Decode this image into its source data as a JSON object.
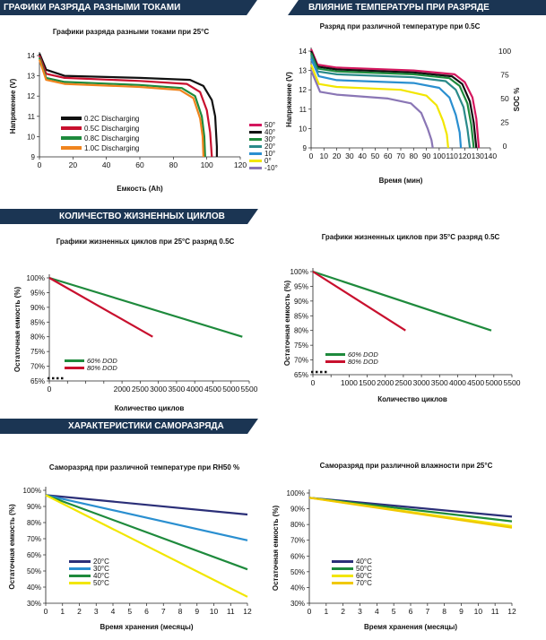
{
  "banners": {
    "discharge": "ГРАФИКИ РАЗРЯДА РАЗНЫМИ ТОКАМИ",
    "temperature": "ВЛИЯНИЕ ТЕМПЕРАТУРЫ ПРИ РАЗРЯДЕ",
    "cycles": "КОЛИЧЕСТВО ЖИЗНЕННЫХ ЦИКЛОВ",
    "selfdischarge": "ХАРАКТЕРИСТИКИ САМОРАЗРЯДА"
  },
  "colors": {
    "banner": "#1b3553",
    "black": "#111111",
    "red": "#c8102e",
    "green": "#1e8a3c",
    "orange": "#f0841e",
    "magenta": "#d4175e",
    "yellow": "#f2e600",
    "navy": "#2b2f78",
    "blue": "#2a8fd0",
    "purple": "#8a76b5",
    "teal": "#2a8a8a"
  },
  "chart_data": [
    {
      "id": "c1",
      "type": "line",
      "title": "Графики разряда разными токами при 25°C",
      "xlabel": "Емкость (Ah)",
      "ylabel": "Напряжение (V)",
      "xlim": [
        0,
        120
      ],
      "ylim": [
        9,
        14
      ],
      "xticks": [
        "0",
        "20",
        "40",
        "60",
        "80",
        "100",
        "120"
      ],
      "yticks": [
        "9",
        "10",
        "11",
        "12",
        "13",
        "14"
      ],
      "series": [
        {
          "name": "0.2C Discharging",
          "color": "#111111",
          "points": [
            [
              0,
              14.1
            ],
            [
              4,
              13.3
            ],
            [
              15,
              13.0
            ],
            [
              60,
              12.9
            ],
            [
              90,
              12.8
            ],
            [
              98,
              12.5
            ],
            [
              103,
              11.8
            ],
            [
              105,
              11
            ],
            [
              106,
              9.5
            ],
            [
              106,
              9
            ]
          ]
        },
        {
          "name": "0.5C Discharging",
          "color": "#c8102e",
          "points": [
            [
              0,
              14.0
            ],
            [
              4,
              13.1
            ],
            [
              15,
              12.9
            ],
            [
              60,
              12.75
            ],
            [
              88,
              12.6
            ],
            [
              96,
              12.2
            ],
            [
              100,
              11.3
            ],
            [
              102,
              10.2
            ],
            [
              103,
              9
            ]
          ]
        },
        {
          "name": "0.8C Discharging",
          "color": "#1e8a3c",
          "points": [
            [
              0,
              13.9
            ],
            [
              4,
              12.9
            ],
            [
              15,
              12.7
            ],
            [
              60,
              12.55
            ],
            [
              85,
              12.4
            ],
            [
              93,
              12.0
            ],
            [
              97,
              11.0
            ],
            [
              98.5,
              10.0
            ],
            [
              99,
              9
            ]
          ]
        },
        {
          "name": "1.0C Discharging",
          "color": "#f0841e",
          "points": [
            [
              0,
              13.8
            ],
            [
              4,
              12.8
            ],
            [
              15,
              12.6
            ],
            [
              60,
              12.45
            ],
            [
              84,
              12.3
            ],
            [
              92,
              11.9
            ],
            [
              96,
              10.9
            ],
            [
              97.5,
              10.0
            ],
            [
              98,
              9
            ]
          ]
        }
      ]
    },
    {
      "id": "c2",
      "type": "line",
      "title": "Разряд при различной температуре при 0.5C",
      "xlabel": "Время (мин)",
      "ylabel": "Напряжение (V)",
      "y2label": "SOC %",
      "xlim": [
        0,
        140
      ],
      "ylim": [
        9,
        14
      ],
      "xticks": [
        "0",
        "10",
        "20",
        "30",
        "40",
        "50",
        "60",
        "70",
        "80",
        "90",
        "100",
        "110",
        "120",
        "130",
        "140"
      ],
      "yticks": [
        "9",
        "10",
        "11",
        "12",
        "13",
        "14"
      ],
      "y2ticks": [
        "0",
        "25",
        "50",
        "75",
        "100"
      ],
      "series": [
        {
          "name": "50°",
          "color": "#d4175e",
          "points": [
            [
              0,
              14.1
            ],
            [
              5,
              13.3
            ],
            [
              20,
              13.15
            ],
            [
              80,
              13.0
            ],
            [
              112,
              12.8
            ],
            [
              120,
              12.4
            ],
            [
              126,
              11.6
            ],
            [
              129,
              10.5
            ],
            [
              131,
              9
            ]
          ]
        },
        {
          "name": "40°",
          "color": "#111111",
          "points": [
            [
              0,
              14.0
            ],
            [
              5,
              13.2
            ],
            [
              20,
              13.05
            ],
            [
              80,
              12.9
            ],
            [
              110,
              12.7
            ],
            [
              118,
              12.3
            ],
            [
              124,
              11.4
            ],
            [
              127,
              10.3
            ],
            [
              129,
              9
            ]
          ]
        },
        {
          "name": "30°",
          "color": "#1e8a3c",
          "points": [
            [
              0,
              13.9
            ],
            [
              5,
              13.1
            ],
            [
              20,
              12.95
            ],
            [
              80,
              12.8
            ],
            [
              108,
              12.6
            ],
            [
              116,
              12.2
            ],
            [
              122,
              11.3
            ],
            [
              125,
              10.2
            ],
            [
              127,
              9
            ]
          ]
        },
        {
          "name": "20°",
          "color": "#2a8a8a",
          "points": [
            [
              0,
              13.8
            ],
            [
              5,
              12.95
            ],
            [
              20,
              12.8
            ],
            [
              80,
              12.65
            ],
            [
              105,
              12.45
            ],
            [
              113,
              12.0
            ],
            [
              119,
              11.1
            ],
            [
              122,
              10.0
            ],
            [
              124,
              9
            ]
          ]
        },
        {
          "name": "10°",
          "color": "#2a8fd0",
          "points": [
            [
              0,
              13.6
            ],
            [
              6,
              12.7
            ],
            [
              20,
              12.5
            ],
            [
              80,
              12.35
            ],
            [
              100,
              12.1
            ],
            [
              108,
              11.6
            ],
            [
              113,
              10.7
            ],
            [
              116,
              9.8
            ],
            [
              117,
              9
            ]
          ]
        },
        {
          "name": "0°",
          "color": "#f2e600",
          "points": [
            [
              0,
              13.3
            ],
            [
              6,
              12.3
            ],
            [
              20,
              12.15
            ],
            [
              70,
              12.0
            ],
            [
              90,
              11.7
            ],
            [
              98,
              11.2
            ],
            [
              103,
              10.4
            ],
            [
              106,
              9.7
            ],
            [
              107,
              9
            ]
          ]
        },
        {
          "name": "-10°",
          "color": "#8a76b5",
          "points": [
            [
              0,
              13.0
            ],
            [
              7,
              11.9
            ],
            [
              20,
              11.75
            ],
            [
              60,
              11.55
            ],
            [
              78,
              11.3
            ],
            [
              86,
              10.8
            ],
            [
              91,
              10.0
            ],
            [
              94,
              9.4
            ],
            [
              95,
              9
            ]
          ]
        }
      ]
    },
    {
      "id": "c3",
      "type": "line",
      "title": "Графики жизненных циклов при 25°C разряд 0.5C",
      "xlabel": "Количество циклов",
      "ylabel": "Остаточная емкость (%)",
      "xlim": [
        0,
        5800
      ],
      "ylim": [
        65,
        100
      ],
      "xticks": [
        "0",
        "500",
        "1000",
        "1500",
        "2000",
        "2500",
        "3000",
        "3500",
        "4000",
        "4500",
        "5000",
        "5500"
      ],
      "xtick_labels_shown": [
        "2000",
        "2500",
        "3000",
        "3500",
        "4000",
        "4500",
        "5000",
        "5500"
      ],
      "yticks": [
        "65%",
        "70%",
        "75%",
        "80%",
        "85%",
        "90%",
        "95%",
        "100%"
      ],
      "series": [
        {
          "name": "60% DOD",
          "color": "#1e8a3c",
          "points": [
            [
              0,
              100
            ],
            [
              5600,
              80
            ]
          ]
        },
        {
          "name": "80%  DOD",
          "color": "#c8102e",
          "points": [
            [
              0,
              100
            ],
            [
              3000,
              80
            ]
          ]
        }
      ]
    },
    {
      "id": "c4",
      "type": "line",
      "title": "Графики жизненных циклов при 35°C разряд 0.5C",
      "xlabel": "Количество циклов",
      "ylabel": "Остаточная емкость (%)",
      "xlim": [
        0,
        5800
      ],
      "ylim": [
        65,
        100
      ],
      "xticks": [
        "0",
        "500",
        "1000",
        "1500",
        "2000",
        "2500",
        "3000",
        "3500",
        "4000",
        "4500",
        "5000",
        "5500"
      ],
      "xtick_labels_shown": [
        "1000",
        "1500",
        "2000",
        "2500",
        "3000",
        "3500",
        "4000",
        "4500",
        "5000",
        "5500"
      ],
      "yticks": [
        "65%",
        "70%",
        "75%",
        "80%",
        "85%",
        "90%",
        "95%",
        "100%"
      ],
      "series": [
        {
          "name": "60% DOD",
          "color": "#1e8a3c",
          "points": [
            [
              0,
              100
            ],
            [
              5200,
              80
            ]
          ]
        },
        {
          "name": "80%  DOD",
          "color": "#c8102e",
          "points": [
            [
              0,
              100
            ],
            [
              2700,
              80
            ]
          ]
        }
      ]
    },
    {
      "id": "c5",
      "type": "line",
      "title": "Саморазряд при различной температуре  при RH50 %",
      "xlabel": "Время хранения (месяцы)",
      "ylabel": "Остаточная емкость  (%)",
      "xlim": [
        0,
        12
      ],
      "ylim": [
        30,
        100
      ],
      "xticks": [
        "0",
        "1",
        "2",
        "3",
        "4",
        "5",
        "6",
        "7",
        "8",
        "9",
        "10",
        "11",
        "12"
      ],
      "yticks": [
        "30%",
        "40%",
        "50%",
        "60%",
        "70%",
        "80%",
        "90%",
        "100%"
      ],
      "series": [
        {
          "name": "20°C",
          "color": "#2b2f78",
          "points": [
            [
              0,
              97
            ],
            [
              12,
              85
            ]
          ]
        },
        {
          "name": "30°C",
          "color": "#2a8fd0",
          "points": [
            [
              0,
              97
            ],
            [
              12,
              69
            ]
          ]
        },
        {
          "name": "40°C",
          "color": "#1e8a3c",
          "points": [
            [
              0,
              97
            ],
            [
              12,
              51
            ]
          ]
        },
        {
          "name": "50°C",
          "color": "#f2e600",
          "points": [
            [
              0,
              97
            ],
            [
              12,
              34
            ]
          ]
        }
      ]
    },
    {
      "id": "c6",
      "type": "line",
      "title": "Саморазряд при различной влажности при 25°C",
      "xlabel": "Время хранения (месяцы)",
      "ylabel": "Остаточная емкость (%)",
      "xlim": [
        0,
        12
      ],
      "ylim": [
        30,
        100
      ],
      "xticks": [
        "0",
        "1",
        "2",
        "3",
        "4",
        "5",
        "6",
        "7",
        "8",
        "9",
        "10",
        "11",
        "12"
      ],
      "yticks": [
        "30%",
        "40%",
        "50%",
        "60%",
        "70%",
        "80%",
        "90%",
        "100%"
      ],
      "series": [
        {
          "name": "40°C",
          "color": "#2b2f78",
          "points": [
            [
              0,
              97
            ],
            [
              12,
              85
            ]
          ]
        },
        {
          "name": "50°C",
          "color": "#1e8a3c",
          "points": [
            [
              0,
              97
            ],
            [
              12,
              82
            ]
          ]
        },
        {
          "name": "60°C",
          "color": "#f2e600",
          "points": [
            [
              0,
              97
            ],
            [
              12,
              79
            ]
          ]
        },
        {
          "name": "70°C",
          "color": "#f0c800",
          "points": [
            [
              0,
              97
            ],
            [
              12,
              78
            ]
          ]
        }
      ]
    }
  ]
}
